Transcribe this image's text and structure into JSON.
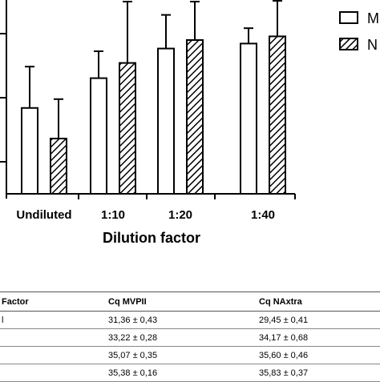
{
  "chart_data": {
    "type": "bar",
    "xlabel": "Dilution factor",
    "categories": [
      "Undiluted",
      "1:10",
      "1:20",
      "1:40"
    ],
    "series": [
      {
        "name": "MVPII",
        "values": [
          31.36,
          33.22,
          35.07,
          35.38
        ],
        "errors": [
          0.43,
          0.28,
          0.35,
          0.16
        ],
        "pattern": "open"
      },
      {
        "name": "NAxtra",
        "values": [
          29.45,
          34.17,
          35.6,
          35.83
        ],
        "errors": [
          0.41,
          0.68,
          0.46,
          0.37
        ],
        "pattern": "hatched"
      }
    ],
    "ylim": [
      26.0,
      40.0
    ],
    "legend_labels": [
      "M",
      "N"
    ],
    "legend_position": "top-right",
    "grid": false
  },
  "table": {
    "headers": [
      "Factor",
      "Cq MVPII",
      "Cq NAxtra"
    ],
    "rows": [
      [
        "l",
        "31,36 ± 0,43",
        "29,45 ± 0,41"
      ],
      [
        "",
        "33,22 ± 0,28",
        "34,17 ± 0,68"
      ],
      [
        "",
        "35,07 ± 0,35",
        "35,60 ± 0,46"
      ],
      [
        "",
        "35,38 ± 0,16",
        "35,83 ± 0,37"
      ]
    ]
  }
}
